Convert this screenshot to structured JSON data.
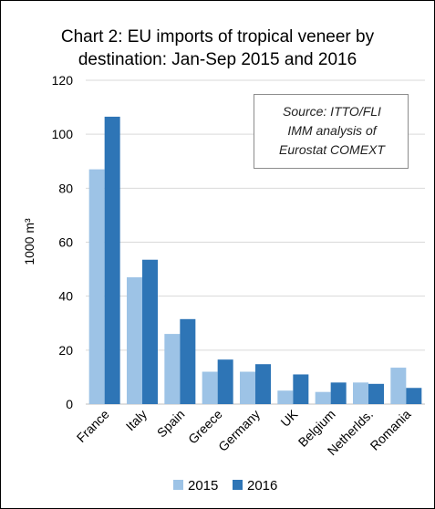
{
  "chart_data": {
    "type": "bar",
    "title_lines": [
      "Chart 2: EU imports of tropical veneer by",
      "destination: Jan-Sep 2015 and 2016"
    ],
    "ylabel": "1000 m³",
    "xlabel": "",
    "ylim": [
      0,
      120
    ],
    "yticks": [
      "0",
      "20",
      "40",
      "60",
      "80",
      "100",
      "120"
    ],
    "categories": [
      "France",
      "Italy",
      "Spain",
      "Greece",
      "Germany",
      "UK",
      "Belgium",
      "Netherlds.",
      "Romania"
    ],
    "series": [
      {
        "name": "2015",
        "color": "#9dc3e6",
        "values": [
          87,
          47,
          26,
          12,
          12,
          5,
          4.5,
          8,
          13.5
        ]
      },
      {
        "name": "2016",
        "color": "#2e75b6",
        "values": [
          106.5,
          53.5,
          31.5,
          16.5,
          14.8,
          11,
          8,
          7.5,
          6
        ]
      }
    ],
    "grid": true,
    "legend_position": "bottom",
    "annotation_lines": [
      "Source: ITTO/FLI",
      "IMM analysis of",
      "Eurostat COMEXT"
    ]
  }
}
